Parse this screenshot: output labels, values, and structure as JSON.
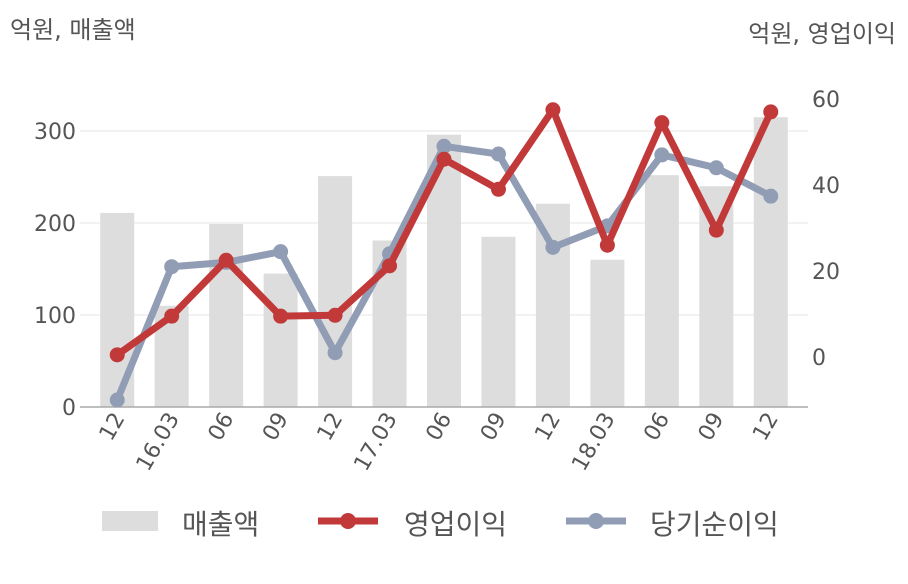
{
  "chart_data": {
    "type": "bar+line",
    "categories": [
      "12",
      "16.03",
      "06",
      "09",
      "12",
      "17.03",
      "06",
      "09",
      "12",
      "18.03",
      "06",
      "09",
      "12"
    ],
    "left_axis": {
      "label": "억원, 매출액",
      "ylim": [
        0,
        350
      ],
      "ticks": [
        0,
        100,
        200,
        300
      ]
    },
    "right_axis": {
      "label": "억원, 영업이익",
      "ylim": [
        -11.5,
        62
      ],
      "ticks": [
        0,
        20,
        40,
        60
      ]
    },
    "series": [
      {
        "name": "매출액",
        "type": "bar",
        "axis": "left",
        "color": "#dddddd",
        "values": [
          211,
          110,
          199,
          145,
          251,
          181,
          296,
          185,
          221,
          160,
          252,
          240,
          315
        ]
      },
      {
        "name": "영업이익",
        "type": "line",
        "axis": "right",
        "color": "#c2393a",
        "values": [
          0.5,
          9.5,
          22.5,
          9.5,
          9.7,
          21.2,
          46,
          39,
          57.5,
          26,
          54.5,
          29.5,
          57
        ]
      },
      {
        "name": "당기순이익",
        "type": "line",
        "axis": "right",
        "color": "#919db5",
        "values": [
          -10,
          21,
          22,
          24.5,
          1,
          24,
          49,
          47.2,
          25.5,
          30.5,
          47,
          44,
          37.4
        ]
      }
    ],
    "grid": true,
    "legend": "bottom"
  }
}
